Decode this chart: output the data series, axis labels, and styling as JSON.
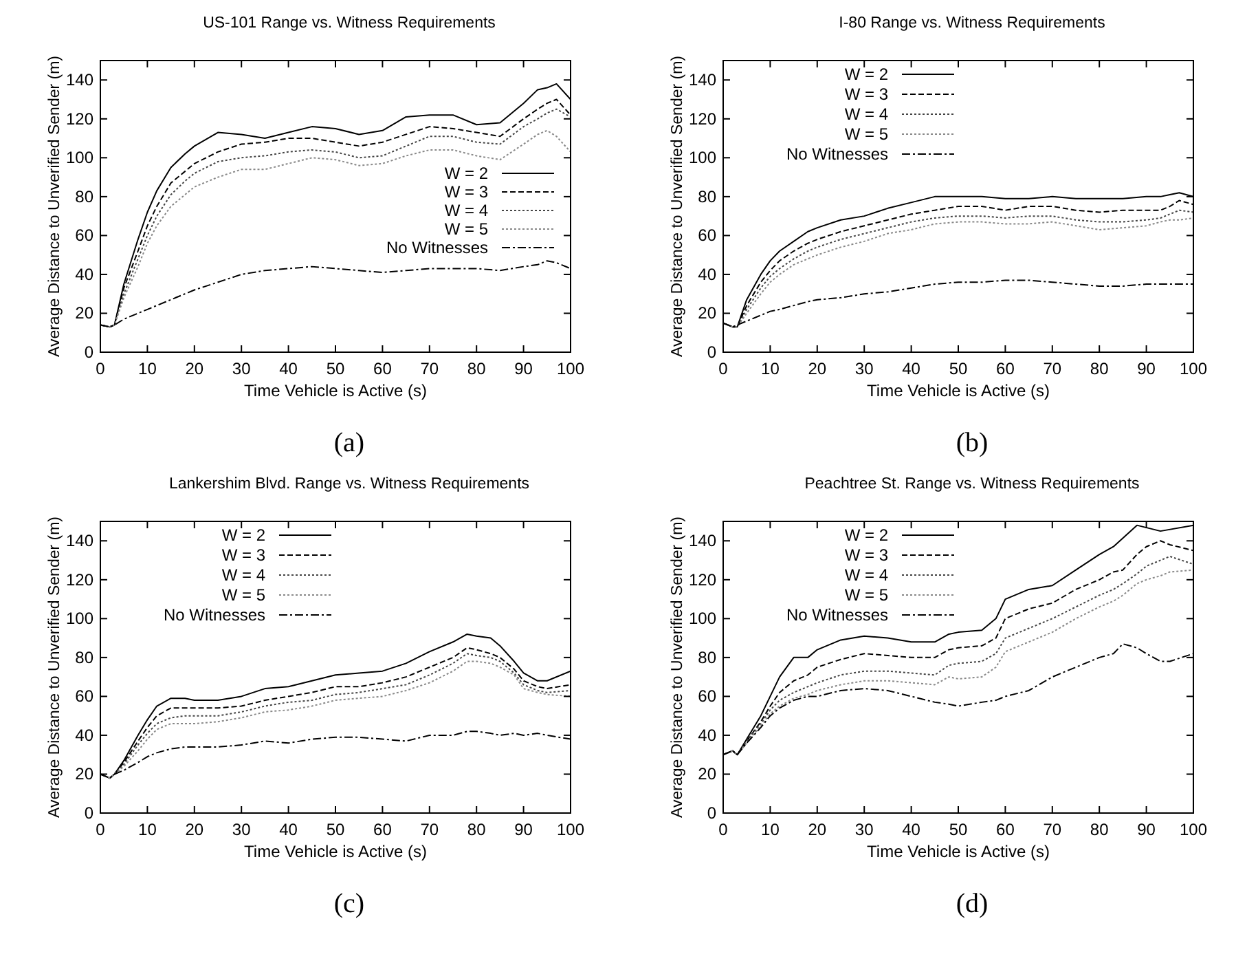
{
  "chart_data": [
    {
      "type": "line",
      "title": "US-101 Range vs. Witness Requirements",
      "xlabel": "Time Vehicle is Active (s)",
      "ylabel": "Average Distance to Unverified Sender (m)",
      "annotations": [
        "(a)"
      ],
      "xlim": [
        0,
        100
      ],
      "ylim": [
        0,
        150
      ],
      "xticks": [
        0,
        10,
        20,
        30,
        40,
        50,
        60,
        70,
        80,
        90,
        100
      ],
      "yticks": [
        0,
        20,
        40,
        60,
        80,
        100,
        120,
        140
      ],
      "grid": false,
      "legend": "right",
      "marker": "none",
      "x": [
        0,
        2,
        3,
        5,
        8,
        10,
        12,
        15,
        18,
        20,
        25,
        30,
        35,
        40,
        45,
        50,
        55,
        60,
        65,
        70,
        75,
        80,
        85,
        90,
        93,
        95,
        97,
        100
      ],
      "series": [
        {
          "name": "W = 2",
          "color": "#000000",
          "line_style": "solid",
          "values": [
            14,
            13,
            14,
            35,
            58,
            72,
            83,
            95,
            102,
            106,
            113,
            112,
            110,
            113,
            116,
            115,
            112,
            114,
            121,
            122,
            122,
            117,
            118,
            128,
            135,
            136,
            138,
            130
          ]
        },
        {
          "name": "W = 3",
          "color": "#000000",
          "line_style": "dashed",
          "values": [
            14,
            13,
            14,
            33,
            52,
            65,
            75,
            87,
            93,
            97,
            103,
            107,
            108,
            110,
            110,
            108,
            106,
            108,
            112,
            116,
            115,
            113,
            111,
            120,
            125,
            128,
            130,
            122
          ]
        },
        {
          "name": "W = 4",
          "color": "#444444",
          "line_style": "dotted",
          "values": [
            14,
            13,
            14,
            30,
            48,
            60,
            70,
            81,
            88,
            92,
            98,
            100,
            101,
            103,
            104,
            103,
            100,
            101,
            106,
            111,
            111,
            108,
            107,
            116,
            120,
            123,
            125,
            121
          ]
        },
        {
          "name": "W = 5",
          "color": "#888888",
          "line_style": "dotted",
          "values": [
            14,
            13,
            14,
            28,
            44,
            56,
            65,
            75,
            81,
            85,
            90,
            94,
            94,
            97,
            100,
            99,
            96,
            97,
            101,
            104,
            104,
            101,
            99,
            107,
            112,
            114,
            111,
            103
          ]
        },
        {
          "name": "No Witnesses",
          "color": "#000000",
          "line_style": "dashdot",
          "values": [
            14,
            13,
            14,
            17,
            20,
            22,
            24,
            27,
            30,
            32,
            36,
            40,
            42,
            43,
            44,
            43,
            42,
            41,
            42,
            43,
            43,
            43,
            42,
            44,
            45,
            47,
            46,
            43
          ]
        }
      ]
    },
    {
      "type": "line",
      "title": "I-80 Range vs. Witness Requirements",
      "xlabel": "Time Vehicle is Active (s)",
      "ylabel": "Average Distance to Unverified Sender (m)",
      "annotations": [
        "(b)"
      ],
      "xlim": [
        0,
        100
      ],
      "ylim": [
        0,
        150
      ],
      "xticks": [
        0,
        10,
        20,
        30,
        40,
        50,
        60,
        70,
        80,
        90,
        100
      ],
      "yticks": [
        0,
        20,
        40,
        60,
        80,
        100,
        120,
        140
      ],
      "grid": false,
      "legend": "top",
      "marker": "none",
      "x": [
        0,
        2,
        3,
        5,
        8,
        10,
        12,
        15,
        18,
        20,
        25,
        30,
        35,
        40,
        45,
        50,
        55,
        60,
        65,
        70,
        75,
        80,
        85,
        90,
        93,
        95,
        97,
        100
      ],
      "series": [
        {
          "name": "W = 2",
          "color": "#000000",
          "line_style": "solid",
          "values": [
            15,
            13,
            13,
            27,
            40,
            47,
            52,
            57,
            62,
            64,
            68,
            70,
            74,
            77,
            80,
            80,
            80,
            79,
            79,
            80,
            79,
            79,
            79,
            80,
            80,
            81,
            82,
            80
          ]
        },
        {
          "name": "W = 3",
          "color": "#000000",
          "line_style": "dashed",
          "values": [
            15,
            13,
            13,
            24,
            36,
            42,
            47,
            52,
            56,
            58,
            62,
            65,
            68,
            71,
            73,
            75,
            75,
            73,
            75,
            75,
            73,
            72,
            73,
            73,
            73,
            75,
            78,
            76
          ]
        },
        {
          "name": "W = 4",
          "color": "#444444",
          "line_style": "dotted",
          "values": [
            15,
            13,
            13,
            22,
            33,
            39,
            43,
            48,
            52,
            54,
            58,
            61,
            64,
            67,
            69,
            70,
            70,
            69,
            70,
            70,
            68,
            67,
            67,
            68,
            69,
            71,
            73,
            72
          ]
        },
        {
          "name": "W = 5",
          "color": "#888888",
          "line_style": "dotted",
          "values": [
            15,
            13,
            13,
            20,
            30,
            36,
            40,
            45,
            48,
            50,
            54,
            57,
            61,
            63,
            66,
            67,
            67,
            66,
            66,
            67,
            65,
            63,
            64,
            65,
            67,
            68,
            68,
            69
          ]
        },
        {
          "name": "No Witnesses",
          "color": "#000000",
          "line_style": "dashdot",
          "values": [
            15,
            13,
            14,
            16,
            19,
            21,
            22,
            24,
            26,
            27,
            28,
            30,
            31,
            33,
            35,
            36,
            36,
            37,
            37,
            36,
            35,
            34,
            34,
            35,
            35,
            35,
            35,
            35
          ]
        }
      ]
    },
    {
      "type": "line",
      "title": "Lankershim Blvd. Range vs. Witness Requirements",
      "xlabel": "Time Vehicle is Active (s)",
      "ylabel": "Average Distance to Unverified Sender (m)",
      "annotations": [
        "(c)"
      ],
      "xlim": [
        0,
        100
      ],
      "ylim": [
        0,
        150
      ],
      "xticks": [
        0,
        10,
        20,
        30,
        40,
        50,
        60,
        70,
        80,
        90,
        100
      ],
      "yticks": [
        0,
        20,
        40,
        60,
        80,
        100,
        120,
        140
      ],
      "grid": false,
      "legend": "top",
      "marker": "none",
      "x": [
        0,
        2,
        3,
        5,
        8,
        10,
        12,
        15,
        18,
        20,
        25,
        30,
        35,
        40,
        45,
        50,
        55,
        60,
        65,
        70,
        75,
        78,
        80,
        83,
        85,
        88,
        90,
        93,
        95,
        100
      ],
      "series": [
        {
          "name": "W = 2",
          "color": "#000000",
          "line_style": "solid",
          "values": [
            20,
            18,
            20,
            27,
            40,
            48,
            55,
            59,
            59,
            58,
            58,
            60,
            64,
            65,
            68,
            71,
            72,
            73,
            77,
            83,
            88,
            92,
            91,
            90,
            86,
            78,
            72,
            68,
            68,
            73
          ]
        },
        {
          "name": "W = 3",
          "color": "#000000",
          "line_style": "dashed",
          "values": [
            20,
            18,
            20,
            26,
            37,
            44,
            50,
            54,
            54,
            54,
            54,
            55,
            58,
            60,
            62,
            65,
            65,
            67,
            70,
            75,
            80,
            85,
            84,
            82,
            80,
            74,
            68,
            65,
            64,
            66
          ]
        },
        {
          "name": "W = 4",
          "color": "#444444",
          "line_style": "dotted",
          "values": [
            20,
            18,
            20,
            25,
            35,
            41,
            46,
            49,
            50,
            50,
            50,
            52,
            55,
            57,
            58,
            61,
            62,
            64,
            66,
            71,
            77,
            82,
            81,
            80,
            78,
            72,
            66,
            63,
            62,
            63
          ]
        },
        {
          "name": "W = 5",
          "color": "#888888",
          "line_style": "dotted",
          "values": [
            20,
            18,
            20,
            24,
            32,
            38,
            43,
            46,
            46,
            46,
            47,
            49,
            52,
            53,
            55,
            58,
            59,
            60,
            63,
            67,
            73,
            78,
            78,
            77,
            75,
            71,
            64,
            62,
            61,
            60
          ]
        },
        {
          "name": "No Witnesses",
          "color": "#000000",
          "line_style": "dashdot",
          "values": [
            20,
            18,
            20,
            22,
            26,
            29,
            31,
            33,
            34,
            34,
            34,
            35,
            37,
            36,
            38,
            39,
            39,
            38,
            37,
            40,
            40,
            42,
            42,
            41,
            40,
            41,
            40,
            41,
            40,
            38
          ]
        }
      ]
    },
    {
      "type": "line",
      "title": "Peachtree St. Range vs. Witness Requirements",
      "xlabel": "Time Vehicle is Active (s)",
      "ylabel": "Average Distance to Unverified Sender (m)",
      "annotations": [
        "(d)"
      ],
      "xlim": [
        0,
        100
      ],
      "ylim": [
        0,
        150
      ],
      "xticks": [
        0,
        10,
        20,
        30,
        40,
        50,
        60,
        70,
        80,
        90,
        100
      ],
      "yticks": [
        0,
        20,
        40,
        60,
        80,
        100,
        120,
        140
      ],
      "grid": false,
      "legend": "top",
      "marker": "none",
      "x": [
        0,
        2,
        3,
        5,
        8,
        10,
        12,
        15,
        18,
        20,
        25,
        30,
        35,
        40,
        45,
        48,
        50,
        55,
        58,
        60,
        65,
        70,
        75,
        80,
        83,
        85,
        88,
        90,
        93,
        95,
        100
      ],
      "series": [
        {
          "name": "W = 2",
          "color": "#000000",
          "line_style": "solid",
          "values": [
            30,
            32,
            30,
            38,
            50,
            60,
            70,
            80,
            80,
            84,
            89,
            91,
            90,
            88,
            88,
            92,
            93,
            94,
            100,
            110,
            115,
            117,
            125,
            133,
            137,
            null,
            148,
            null,
            145,
            null,
            148
          ]
        },
        {
          "name": "W = 3",
          "color": "#000000",
          "line_style": "dashed",
          "values": [
            30,
            32,
            30,
            37,
            47,
            55,
            62,
            68,
            71,
            75,
            79,
            82,
            81,
            80,
            80,
            84,
            85,
            86,
            90,
            100,
            105,
            108,
            115,
            120,
            124,
            125,
            133,
            137,
            140,
            138,
            135
          ]
        },
        {
          "name": "W = 4",
          "color": "#444444",
          "line_style": "dotted",
          "values": [
            30,
            32,
            30,
            37,
            46,
            53,
            58,
            62,
            65,
            67,
            71,
            73,
            73,
            72,
            71,
            76,
            77,
            78,
            82,
            90,
            95,
            100,
            106,
            112,
            115,
            118,
            123,
            127,
            130,
            132,
            128
          ]
        },
        {
          "name": "W = 5",
          "color": "#888888",
          "line_style": "dotted",
          "values": [
            30,
            32,
            30,
            36,
            45,
            51,
            55,
            59,
            61,
            63,
            66,
            68,
            68,
            67,
            66,
            70,
            69,
            70,
            75,
            83,
            88,
            93,
            100,
            106,
            109,
            112,
            118,
            120,
            122,
            124,
            125
          ]
        },
        {
          "name": "No Witnesses",
          "color": "#000000",
          "line_style": "dashdot",
          "values": [
            30,
            32,
            30,
            36,
            44,
            50,
            54,
            58,
            60,
            60,
            63,
            64,
            63,
            60,
            57,
            56,
            55,
            57,
            58,
            60,
            63,
            70,
            75,
            80,
            82,
            87,
            85,
            82,
            78,
            78,
            82
          ]
        }
      ]
    }
  ]
}
